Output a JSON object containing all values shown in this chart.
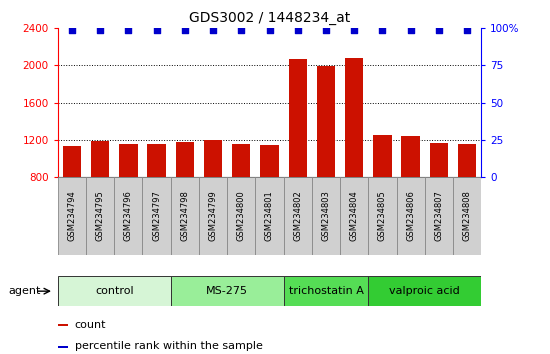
{
  "title": "GDS3002 / 1448234_at",
  "samples": [
    "GSM234794",
    "GSM234795",
    "GSM234796",
    "GSM234797",
    "GSM234798",
    "GSM234799",
    "GSM234800",
    "GSM234801",
    "GSM234802",
    "GSM234803",
    "GSM234804",
    "GSM234805",
    "GSM234806",
    "GSM234807",
    "GSM234808"
  ],
  "counts": [
    1130,
    1190,
    1150,
    1160,
    1175,
    1200,
    1155,
    1145,
    2070,
    1990,
    2080,
    1250,
    1240,
    1170,
    1150
  ],
  "groups": [
    {
      "label": "control",
      "start": 0,
      "end": 4,
      "color": "#d6f5d6"
    },
    {
      "label": "MS-275",
      "start": 4,
      "end": 8,
      "color": "#99ee99"
    },
    {
      "label": "trichostatin A",
      "start": 8,
      "end": 11,
      "color": "#55dd55"
    },
    {
      "label": "valproic acid",
      "start": 11,
      "end": 15,
      "color": "#33cc33"
    }
  ],
  "bar_color": "#cc1100",
  "dot_color": "#0000cc",
  "ymin": 800,
  "ymax": 2400,
  "yticks": [
    800,
    1200,
    1600,
    2000,
    2400
  ],
  "y2ticks": [
    0,
    25,
    50,
    75,
    100
  ],
  "y2labels": [
    "0",
    "25",
    "50",
    "75",
    "100%"
  ],
  "background_color": "#ffffff"
}
